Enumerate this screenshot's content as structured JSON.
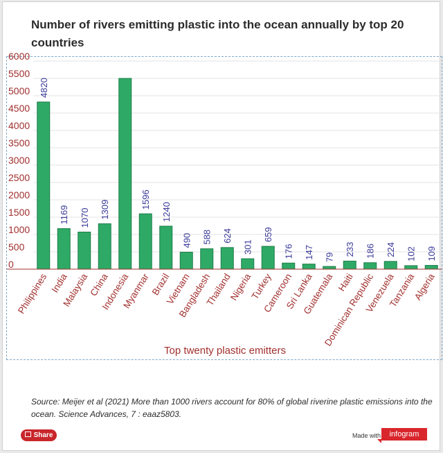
{
  "title": "Number of rivers emitting plastic into the ocean annually by top 20 countries",
  "source": "Source: Meijer et al (2021) More than 1000 rivers account for 80% of global riverine plastic emissions into the ocean. Science Advances, 7 : eaaz5803.",
  "share_label": "Share",
  "made_with_label": "Made with",
  "brand_label": "infogram",
  "colors": {
    "bar": "#2eaa66",
    "bar_border": "#1e7d4a",
    "value_label": "#3a3a9a",
    "category_label": "#a0302e",
    "axis_label": "#a0302e",
    "axis_line": "#a0302e"
  },
  "chart_data": {
    "type": "bar",
    "xlabel": "Top twenty plastic emitters",
    "ylabel": "",
    "ylim": [
      0,
      6000
    ],
    "grid": true,
    "y_ticks": [
      0,
      500,
      1000,
      1500,
      2000,
      2500,
      3000,
      3500,
      4000,
      4500,
      5000,
      5500,
      6000
    ],
    "categories": [
      "Philippines",
      "India",
      "Malaysia",
      "China",
      "Indonesia",
      "Myanmar",
      "Brazil",
      "Vietnam",
      "Bangladesh",
      "Thailand",
      "Nigeria",
      "Turkey",
      "Cameroon",
      "Sri Lanka",
      "Guatemala",
      "Haiti",
      "Dominican Republic",
      "Venezuela",
      "Tanzania",
      "Algeria"
    ],
    "values": [
      4820,
      1169,
      1070,
      1309,
      5500,
      1596,
      1240,
      490,
      588,
      624,
      301,
      659,
      176,
      147,
      79,
      233,
      186,
      224,
      102,
      109
    ],
    "data_labels": [
      "4820",
      "1169",
      "1070",
      "1309",
      "",
      "1596",
      "1240",
      "490",
      "588",
      "624",
      "301",
      "659",
      "176",
      "147",
      "79",
      "233",
      "186",
      "224",
      "102",
      "109"
    ]
  }
}
